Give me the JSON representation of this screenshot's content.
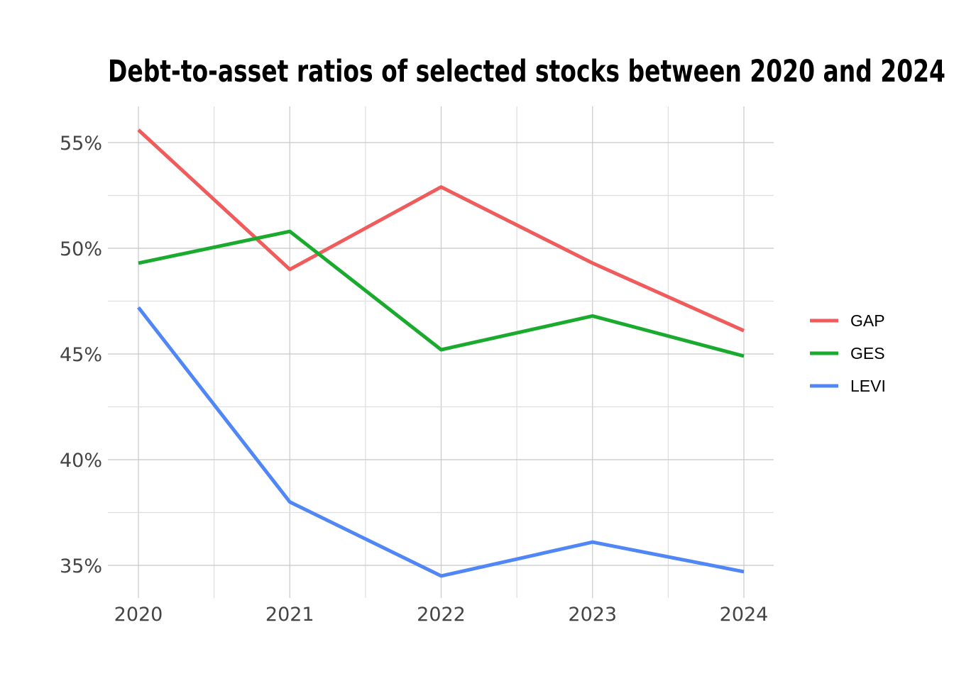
{
  "chart_data": {
    "type": "line",
    "title": "Debt-to-asset ratios of selected stocks between 2020 and 2024",
    "xlabel": "",
    "ylabel": "",
    "x": [
      "2020",
      "2021",
      "2022",
      "2023",
      "2024"
    ],
    "y_ticks": [
      "35%",
      "40%",
      "45%",
      "50%",
      "55%"
    ],
    "ylim": [
      0.338,
      0.567
    ],
    "grid": true,
    "legend_position": "right",
    "series": [
      {
        "name": "GAP",
        "color": "#f05c5c",
        "values": [
          0.556,
          0.49,
          0.529,
          0.493,
          0.461
        ]
      },
      {
        "name": "GES",
        "color": "#1aab2e",
        "values": [
          0.493,
          0.508,
          0.452,
          0.468,
          0.449
        ]
      },
      {
        "name": "LEVI",
        "color": "#5086f5",
        "values": [
          0.472,
          0.38,
          0.345,
          0.361,
          0.347
        ]
      }
    ]
  }
}
